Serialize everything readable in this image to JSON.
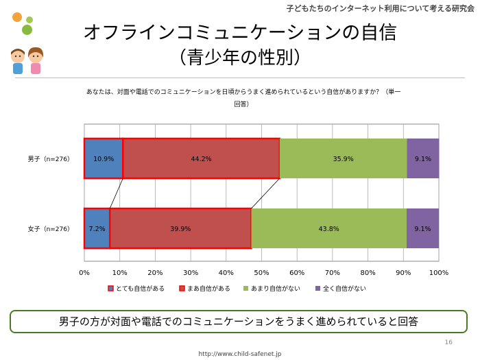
{
  "header": {
    "organization": "子どもたちのインターネット利用について考える研究会"
  },
  "title": {
    "line1": "オフラインコミュニケーションの自信",
    "line2": "（青少年の性別）"
  },
  "question": {
    "line1": "あなたは、対面や電話でのコミュニケーションを日頃からうまく進められているという自信がありますか？（単一",
    "line2": "回答）"
  },
  "conclusion": "男子の方が対面や電話でのコミュニケーションをうまく進められていると回答",
  "page_number": "16",
  "url": "http://www.child-safenet.jp",
  "colors": {
    "very_confident": "#4f81bd",
    "somewhat_confident": "#c0504d",
    "not_very": "#9bbb59",
    "not_at_all": "#8064a2",
    "highlight": "#ff0000"
  },
  "chart_data": {
    "type": "bar",
    "orientation": "horizontal",
    "stacked": true,
    "categories": [
      "男子（n=276）",
      "女子（n=276）"
    ],
    "series": [
      {
        "name": "とても自信がある",
        "values": [
          10.9,
          7.2
        ],
        "labels": [
          "10.9%",
          "7.2%"
        ]
      },
      {
        "name": "まあ自信がある",
        "values": [
          44.2,
          39.9
        ],
        "labels": [
          "44.2%",
          "39.9%"
        ]
      },
      {
        "name": "あまり自信がない",
        "values": [
          35.9,
          43.8
        ],
        "labels": [
          "35.9%",
          "43.8%"
        ]
      },
      {
        "name": "全く自信がない",
        "values": [
          9.1,
          9.1
        ],
        "labels": [
          "9.1%",
          "9.1%"
        ]
      }
    ],
    "xlim": [
      0,
      100
    ],
    "x_ticks": [
      "0%",
      "10%",
      "20%",
      "30%",
      "40%",
      "50%",
      "60%",
      "70%",
      "80%",
      "90%",
      "100%"
    ],
    "highlight_series": [
      0,
      1
    ],
    "legend_position": "bottom",
    "grid": true
  }
}
